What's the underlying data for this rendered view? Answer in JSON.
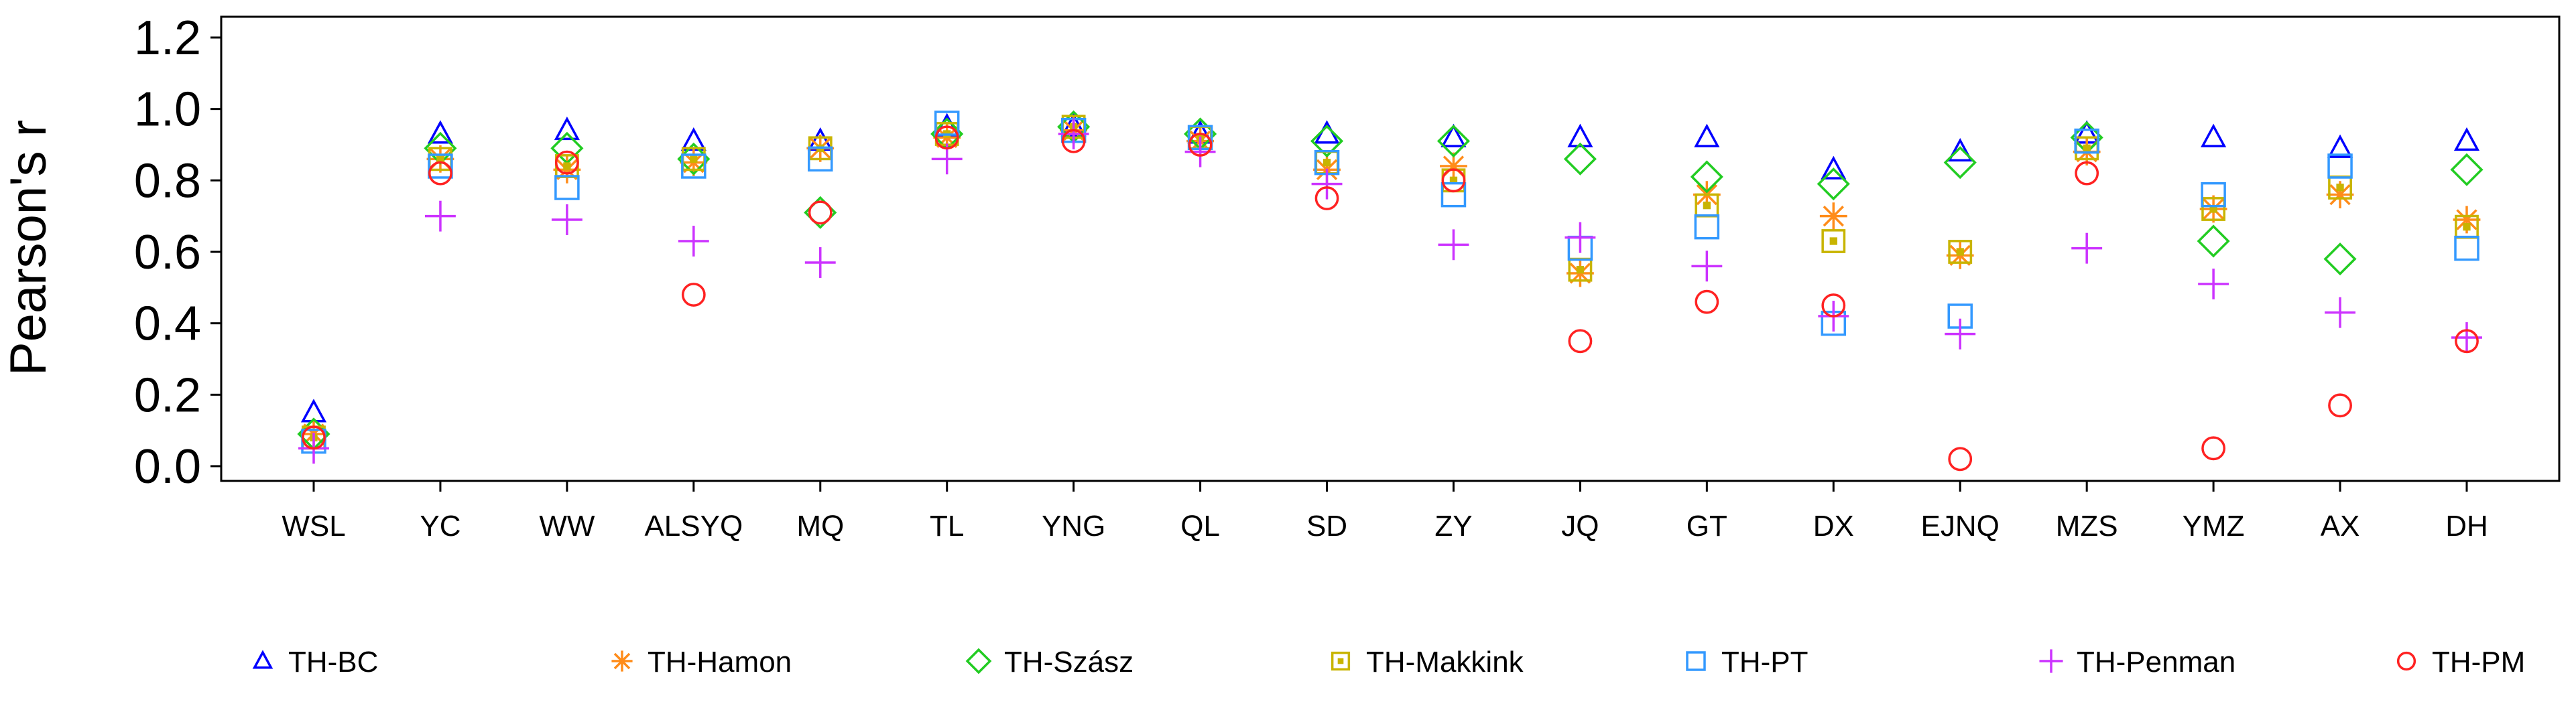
{
  "chart_data": {
    "type": "scatter",
    "title": "",
    "xlabel": "",
    "ylabel": "Pearson's r",
    "ylim": [
      0.0,
      1.2
    ],
    "yticks": [
      "0.0",
      "0.2",
      "0.4",
      "0.6",
      "0.8",
      "1.0",
      "1.2"
    ],
    "categories": [
      "WSL",
      "YC",
      "WW",
      "ALSYQ",
      "MQ",
      "TL",
      "YNG",
      "QL",
      "SD",
      "ZY",
      "JQ",
      "GT",
      "DX",
      "EJNQ",
      "MZS",
      "YMZ",
      "AX",
      "DH"
    ],
    "grid": false,
    "legend_position": "bottom",
    "series": [
      {
        "name": "TH-BC",
        "marker": "triangle",
        "color": "#0000ff",
        "values": [
          0.15,
          0.93,
          0.94,
          0.91,
          0.91,
          0.95,
          0.95,
          0.93,
          0.93,
          0.92,
          0.92,
          0.92,
          0.83,
          0.88,
          0.93,
          0.92,
          0.89,
          0.91
        ]
      },
      {
        "name": "TH-Hamon",
        "marker": "asterisk",
        "color": "#ff8c1a",
        "values": [
          0.09,
          0.86,
          0.83,
          0.85,
          0.89,
          0.92,
          0.94,
          0.91,
          0.83,
          0.84,
          0.54,
          0.76,
          0.7,
          0.59,
          0.88,
          0.72,
          0.76,
          0.69
        ]
      },
      {
        "name": "TH-Szász",
        "marker": "diamond",
        "color": "#22cc22",
        "values": [
          0.09,
          0.89,
          0.89,
          0.86,
          0.71,
          0.93,
          0.95,
          0.93,
          0.91,
          0.91,
          0.86,
          0.81,
          0.79,
          0.85,
          0.92,
          0.63,
          0.58,
          0.83
        ]
      },
      {
        "name": "TH-Makkink",
        "marker": "square-dot",
        "color": "#c8b400",
        "values": [
          0.08,
          0.86,
          0.84,
          0.86,
          0.89,
          0.93,
          0.95,
          0.92,
          0.85,
          0.8,
          0.55,
          0.73,
          0.63,
          0.6,
          0.89,
          0.72,
          0.78,
          0.67
        ]
      },
      {
        "name": "TH-PT",
        "marker": "square",
        "color": "#3399ff",
        "values": [
          0.07,
          0.84,
          0.78,
          0.84,
          0.86,
          0.96,
          0.94,
          0.92,
          0.85,
          0.76,
          0.61,
          0.67,
          0.4,
          0.42,
          0.91,
          0.76,
          0.84,
          0.61
        ]
      },
      {
        "name": "TH-Penman",
        "marker": "plus",
        "color": "#cc33ff",
        "values": [
          0.05,
          0.7,
          0.69,
          0.63,
          0.57,
          0.86,
          0.93,
          0.88,
          0.79,
          0.62,
          0.64,
          0.56,
          0.42,
          0.37,
          0.61,
          0.51,
          0.43,
          0.36
        ]
      },
      {
        "name": "TH-PM",
        "marker": "circle",
        "color": "#ff2222",
        "values": [
          0.08,
          0.82,
          0.85,
          0.48,
          0.71,
          0.92,
          0.91,
          0.9,
          0.75,
          0.8,
          0.35,
          0.46,
          0.45,
          0.02,
          0.82,
          0.05,
          0.17,
          0.35
        ]
      }
    ]
  }
}
